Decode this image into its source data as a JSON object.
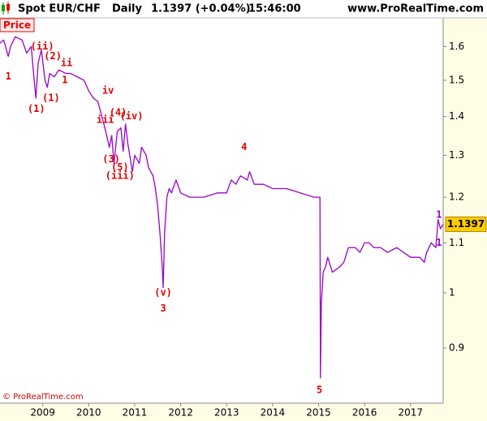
{
  "chart_data": {
    "type": "line",
    "title": "Spot EUR/CHF",
    "period": "Daily",
    "quote": "1.1397 (+0.04%)",
    "time": "15:46:00",
    "source": "www.ProRealTime.com",
    "copyright": "© ProRealTime.com",
    "yscale": "log",
    "xlim": [
      2008.07,
      2017.71
    ],
    "ylim": [
      0.81,
      1.69
    ],
    "xticks": [
      2009,
      2010,
      2011,
      2012,
      2013,
      2014,
      2015,
      2016,
      2017
    ],
    "yticks": [
      0.9,
      1,
      1.1,
      1.2,
      1.3,
      1.4,
      1.5,
      1.6
    ],
    "last_value": 1.1397,
    "x": [
      2008.07,
      2008.15,
      2008.25,
      2008.3,
      2008.4,
      2008.55,
      2008.65,
      2008.75,
      2008.8,
      2008.85,
      2008.9,
      2008.97,
      2009.05,
      2009.1,
      2009.15,
      2009.25,
      2009.35,
      2009.5,
      2009.6,
      2009.75,
      2009.9,
      2010.0,
      2010.1,
      2010.2,
      2010.35,
      2010.45,
      2010.5,
      2010.55,
      2010.62,
      2010.7,
      2010.75,
      2010.8,
      2010.85,
      2010.95,
      2011.0,
      2011.1,
      2011.15,
      2011.25,
      2011.3,
      2011.4,
      2011.45,
      2011.5,
      2011.55,
      2011.6,
      2011.62,
      2011.65,
      2011.7,
      2011.75,
      2011.8,
      2011.9,
      2012.0,
      2012.2,
      2012.5,
      2012.8,
      2013.0,
      2013.1,
      2013.2,
      2013.3,
      2013.45,
      2013.5,
      2013.6,
      2013.8,
      2014.0,
      2014.3,
      2014.6,
      2014.9,
      2015.03,
      2015.04,
      2015.06,
      2015.1,
      2015.15,
      2015.2,
      2015.3,
      2015.45,
      2015.55,
      2015.65,
      2015.8,
      2015.9,
      2016.0,
      2016.1,
      2016.2,
      2016.35,
      2016.5,
      2016.7,
      2016.85,
      2017.0,
      2017.2,
      2017.3,
      2017.35,
      2017.45,
      2017.55,
      2017.6,
      2017.65,
      2017.71
    ],
    "series": [
      {
        "name": "Price",
        "color": "#9900cc",
        "values": [
          1.61,
          1.62,
          1.57,
          1.6,
          1.63,
          1.62,
          1.58,
          1.6,
          1.52,
          1.45,
          1.55,
          1.59,
          1.5,
          1.48,
          1.52,
          1.51,
          1.53,
          1.52,
          1.52,
          1.51,
          1.5,
          1.47,
          1.45,
          1.44,
          1.37,
          1.32,
          1.35,
          1.28,
          1.36,
          1.37,
          1.31,
          1.38,
          1.33,
          1.26,
          1.3,
          1.28,
          1.32,
          1.3,
          1.27,
          1.25,
          1.22,
          1.18,
          1.12,
          1.05,
          1.01,
          1.12,
          1.2,
          1.22,
          1.21,
          1.24,
          1.21,
          1.2,
          1.2,
          1.21,
          1.21,
          1.24,
          1.23,
          1.25,
          1.24,
          1.26,
          1.23,
          1.23,
          1.22,
          1.22,
          1.21,
          1.2,
          1.2,
          0.85,
          0.98,
          1.04,
          1.05,
          1.07,
          1.04,
          1.05,
          1.06,
          1.09,
          1.09,
          1.08,
          1.1,
          1.1,
          1.09,
          1.09,
          1.08,
          1.09,
          1.08,
          1.07,
          1.07,
          1.06,
          1.08,
          1.1,
          1.09,
          1.15,
          1.13,
          1.1397
        ]
      }
    ],
    "annotation_color": "#e00000",
    "annotations": [
      {
        "text": "1",
        "x": 2008.25,
        "y": 1.51
      },
      {
        "text": "(1)",
        "x": 2008.86,
        "y": 1.42
      },
      {
        "text": "(ii)",
        "x": 2008.99,
        "y": 1.6
      },
      {
        "text": "(2)",
        "x": 2009.22,
        "y": 1.57
      },
      {
        "text": "ii",
        "x": 2009.52,
        "y": 1.55
      },
      {
        "text": "(1)",
        "x": 2009.18,
        "y": 1.45
      },
      {
        "text": "1",
        "x": 2009.48,
        "y": 1.5
      },
      {
        "text": "iv",
        "x": 2010.42,
        "y": 1.47
      },
      {
        "text": "iii",
        "x": 2010.36,
        "y": 1.39
      },
      {
        "text": "(4)",
        "x": 2010.64,
        "y": 1.41
      },
      {
        "text": "(iv)",
        "x": 2010.93,
        "y": 1.4
      },
      {
        "text": "(3)",
        "x": 2010.49,
        "y": 1.29
      },
      {
        "text": "(5)",
        "x": 2010.68,
        "y": 1.27
      },
      {
        "text": "(iii)",
        "x": 2010.68,
        "y": 1.25
      },
      {
        "text": "4",
        "x": 2013.38,
        "y": 1.32
      },
      {
        "text": "(v)",
        "x": 2011.62,
        "y": 1.0
      },
      {
        "text": "3",
        "x": 2011.62,
        "y": 0.97
      },
      {
        "text": "5",
        "x": 2015.02,
        "y": 0.83
      },
      {
        "text": "1",
        "x": 2017.62,
        "y": 1.16,
        "color": "#9900cc"
      },
      {
        "text": "1",
        "x": 2017.62,
        "y": 1.1,
        "color": "#9900cc"
      }
    ]
  }
}
